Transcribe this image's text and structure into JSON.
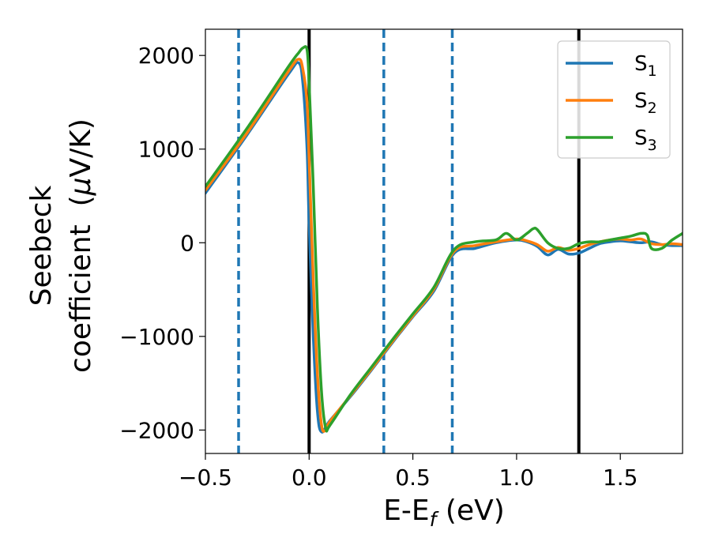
{
  "chart_data": {
    "type": "line",
    "title": "",
    "xlabel": {
      "main": "E-E",
      "sub": "f",
      "tail": " (eV)"
    },
    "ylabel": {
      "line1": "Seebeck",
      "line2_main": "coefficient  (",
      "line2_mu": "μ",
      "line2_tail": "V/K)"
    },
    "xlim": [
      -0.5,
      1.8
    ],
    "ylim": [
      -2250,
      2280
    ],
    "x_ticks": [
      -0.5,
      0.0,
      0.5,
      1.0,
      1.5
    ],
    "x_tick_labels": [
      "−0.5",
      "0.0",
      "0.5",
      "1.0",
      "1.5"
    ],
    "y_ticks": [
      -2000,
      -1000,
      0,
      1000,
      2000
    ],
    "y_tick_labels": [
      "−2000",
      "−1000",
      "0",
      "1000",
      "2000"
    ],
    "grid": false,
    "legend_position": "top-right",
    "vlines_solid": [
      0.0,
      1.3
    ],
    "vlines_dashed": [
      -0.34,
      0.36,
      0.69
    ],
    "colors": {
      "solid_vline": "#000000",
      "dashed_vline": "#1f77b4"
    },
    "series": [
      {
        "name": "S",
        "sub": "1",
        "color": "#1f77b4",
        "x": [
          -0.5,
          -0.3,
          -0.1,
          -0.05,
          -0.03,
          -0.01,
          0.0,
          0.02,
          0.04,
          0.06,
          0.1,
          0.2,
          0.3,
          0.4,
          0.5,
          0.6,
          0.7,
          0.8,
          0.9,
          1.0,
          1.05,
          1.1,
          1.15,
          1.2,
          1.25,
          1.3,
          1.35,
          1.4,
          1.45,
          1.5,
          1.55,
          1.6,
          1.65,
          1.7,
          1.75,
          1.8
        ],
        "y": [
          530,
          1150,
          1800,
          1920,
          1700,
          1000,
          200,
          -1000,
          -1800,
          -2020,
          -1900,
          -1640,
          -1360,
          -1070,
          -790,
          -520,
          -110,
          -60,
          0,
          30,
          10,
          -40,
          -130,
          -70,
          -120,
          -110,
          -60,
          -10,
          10,
          20,
          10,
          0,
          10,
          -20,
          -30,
          -30
        ]
      },
      {
        "name": "S",
        "sub": "2",
        "color": "#ff7f0e",
        "x": [
          -0.5,
          -0.3,
          -0.1,
          -0.05,
          -0.03,
          -0.01,
          0.0,
          0.02,
          0.04,
          0.06,
          0.08,
          0.1,
          0.2,
          0.3,
          0.4,
          0.5,
          0.6,
          0.7,
          0.8,
          0.9,
          1.0,
          1.05,
          1.1,
          1.15,
          1.2,
          1.25,
          1.3,
          1.35,
          1.4,
          1.45,
          1.5,
          1.55,
          1.6,
          1.65,
          1.7,
          1.75,
          1.8
        ],
        "y": [
          560,
          1170,
          1830,
          1960,
          1850,
          1500,
          900,
          -400,
          -1400,
          -1950,
          -2000,
          -1910,
          -1630,
          -1350,
          -1060,
          -780,
          -500,
          -90,
          -30,
          10,
          40,
          20,
          -20,
          -90,
          -50,
          -80,
          -60,
          -20,
          10,
          30,
          40,
          30,
          40,
          -10,
          -20,
          -10,
          -20
        ]
      },
      {
        "name": "S",
        "sub": "3",
        "color": "#2ca02c",
        "x": [
          -0.5,
          -0.3,
          -0.1,
          -0.05,
          -0.03,
          -0.01,
          0.0,
          0.02,
          0.04,
          0.06,
          0.08,
          0.1,
          0.2,
          0.3,
          0.4,
          0.5,
          0.6,
          0.7,
          0.8,
          0.9,
          0.95,
          1.0,
          1.05,
          1.08,
          1.1,
          1.15,
          1.2,
          1.25,
          1.3,
          1.35,
          1.4,
          1.45,
          1.5,
          1.55,
          1.6,
          1.63,
          1.65,
          1.7,
          1.75,
          1.8
        ],
        "y": [
          600,
          1220,
          1880,
          2030,
          2080,
          2060,
          1700,
          600,
          -700,
          -1600,
          -1980,
          -1950,
          -1620,
          -1330,
          -1040,
          -760,
          -480,
          -70,
          10,
          30,
          100,
          30,
          100,
          150,
          140,
          0,
          -60,
          -60,
          -10,
          10,
          10,
          30,
          50,
          70,
          100,
          80,
          -60,
          -60,
          30,
          100
        ]
      }
    ]
  }
}
